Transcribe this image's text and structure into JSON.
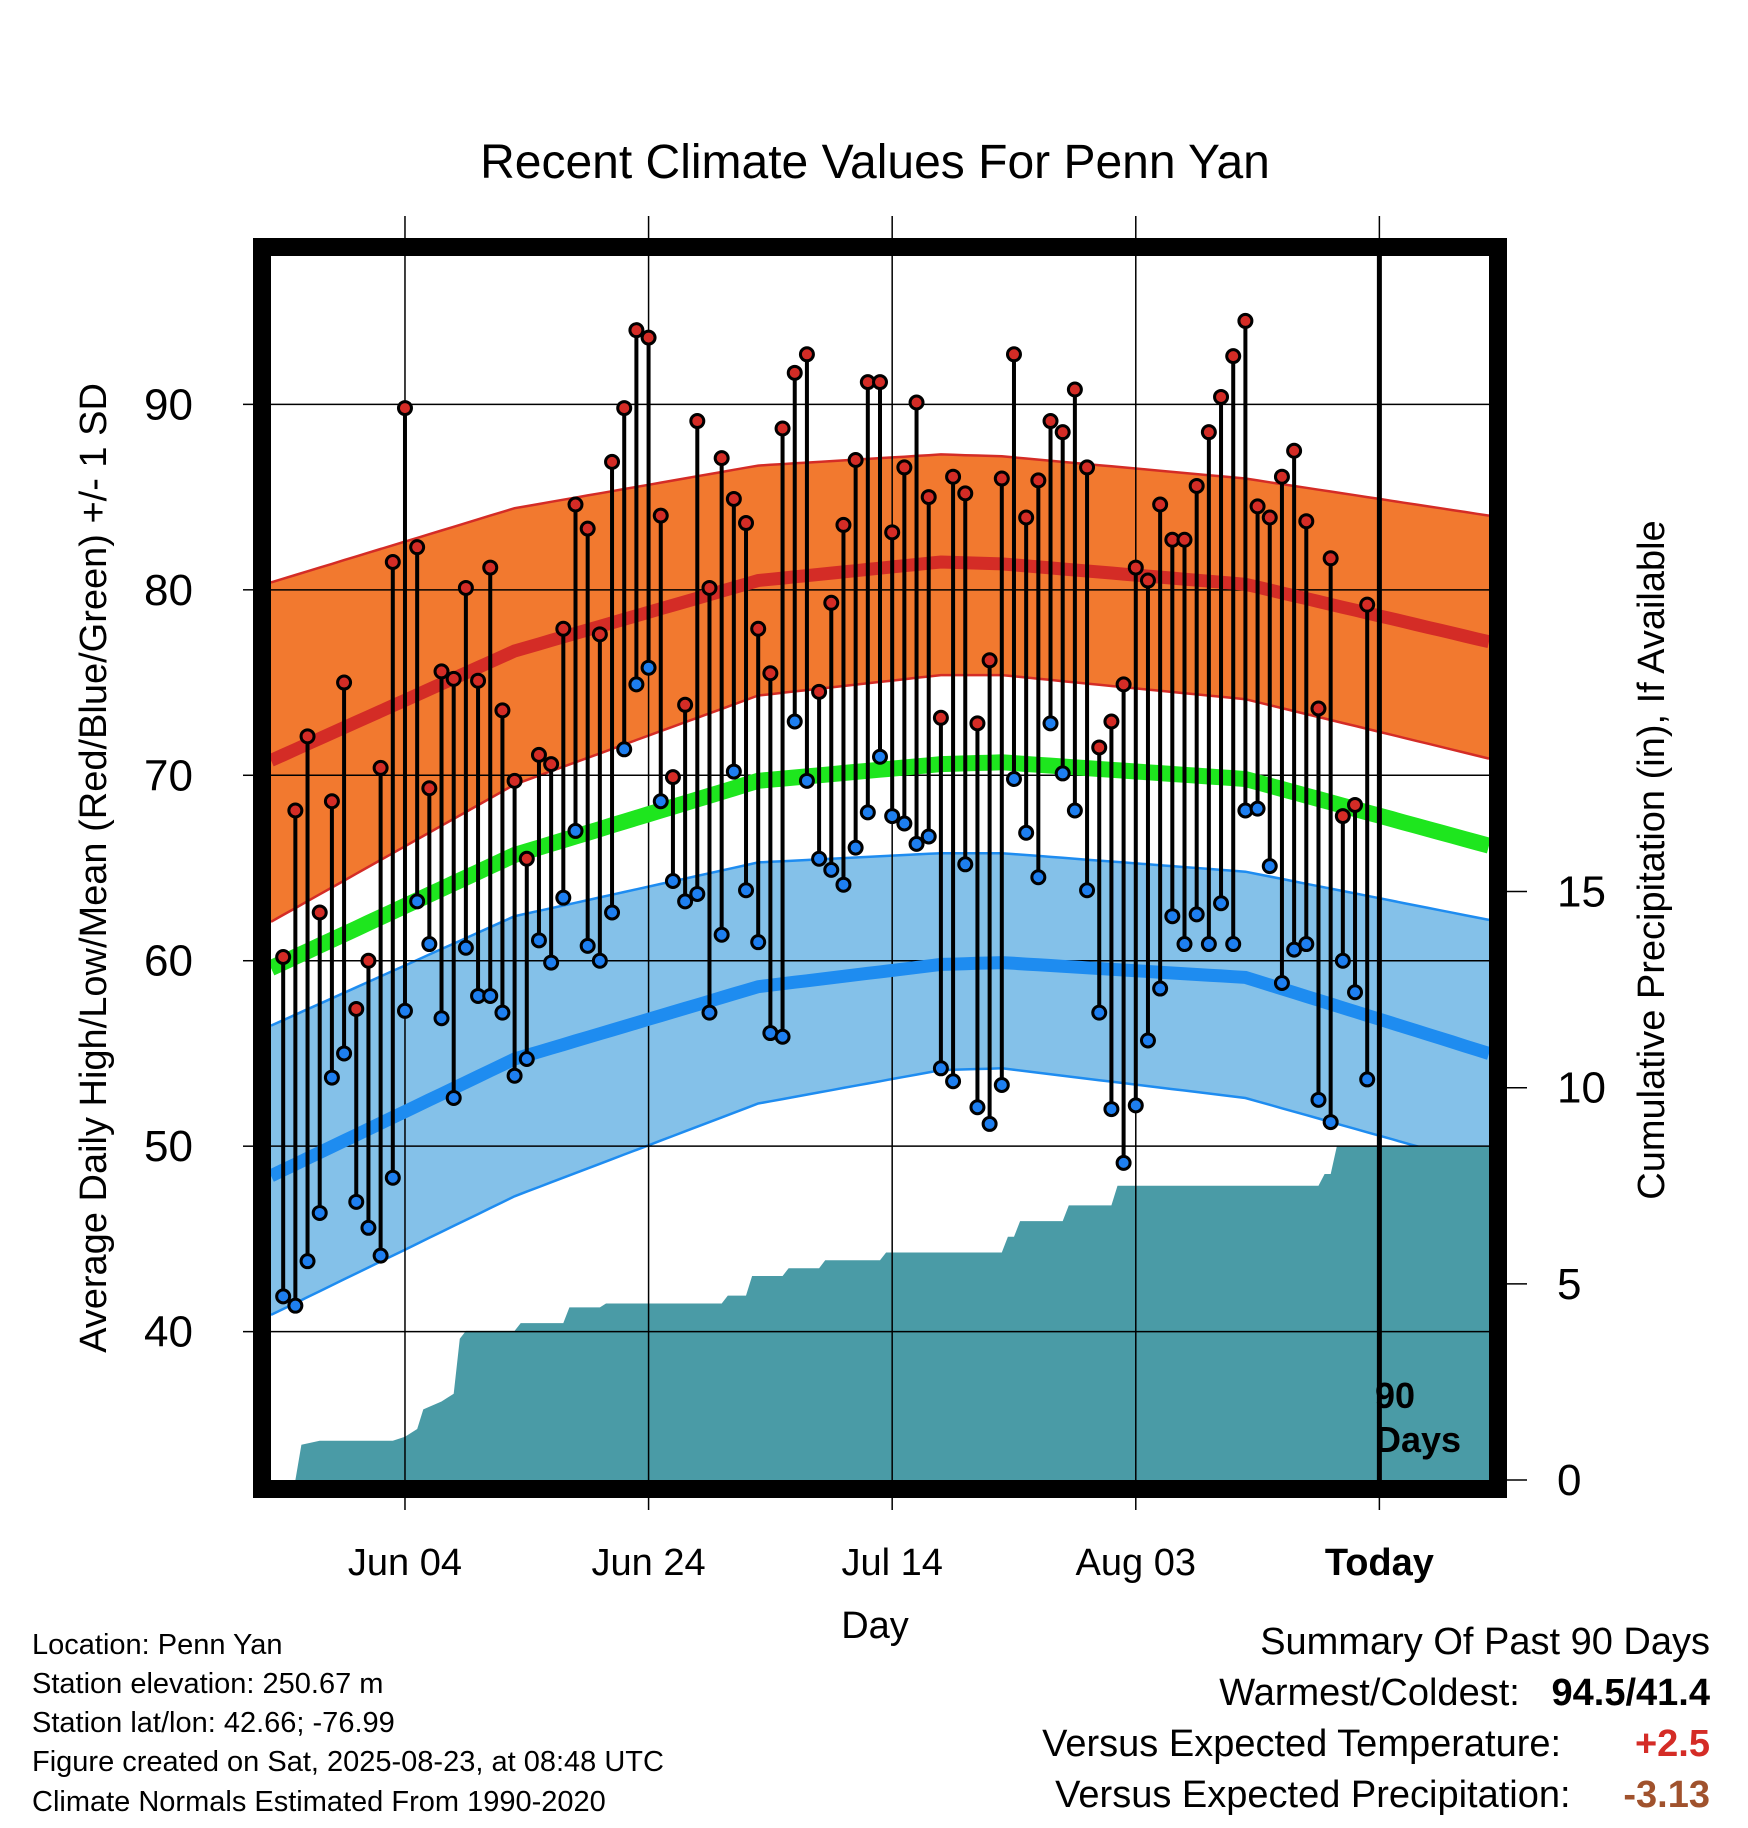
{
  "chart_data": {
    "type": "line",
    "title": "Recent Climate Values For Penn Yan",
    "xlabel": "Day",
    "ylabel": "Average Daily High/Low/Mean (Red/Blue/Green) +/- 1 SD",
    "y2label": "Cumulative Precipitation (in), If Available",
    "x_tick_labels": [
      "Jun 04",
      "Jun 24",
      "Jul 14",
      "Aug 03",
      "Today"
    ],
    "x_tick_days": [
      11,
      31,
      51,
      71,
      91
    ],
    "xlim": [
      0,
      100
    ],
    "y_ticks": [
      40,
      50,
      60,
      70,
      80,
      90
    ],
    "ylim": [
      32,
      98
    ],
    "y2_ticks": [
      0,
      5,
      10,
      15
    ],
    "y2_tick_labels": [
      "0",
      "5",
      "10",
      "15"
    ],
    "y2lim": [
      0,
      31.2
    ],
    "today_day": 91,
    "today_annotation": [
      "90",
      "Days"
    ],
    "colors": {
      "high_band": "#f2792f",
      "high_line": "#d42c26",
      "low_band": "#84c1e9",
      "low_line": "#1e8cf0",
      "mean_line": "#1ee61e",
      "precip_fill": "#4a9ba6",
      "high_marker": "#d42c26",
      "low_marker": "#1e7ff0"
    },
    "normal_high": {
      "days": [
        0,
        20,
        40,
        55,
        60,
        80,
        100
      ],
      "mean": [
        70.8,
        76.7,
        80.5,
        81.5,
        81.4,
        80.3,
        77.2
      ],
      "upper": [
        80.4,
        84.4,
        86.7,
        87.3,
        87.2,
        86.0,
        84.0
      ],
      "lower": [
        62.1,
        69.5,
        74.3,
        75.4,
        75.4,
        74.1,
        70.9
      ]
    },
    "normal_low": {
      "days": [
        0,
        20,
        40,
        55,
        60,
        80,
        100
      ],
      "mean": [
        48.4,
        54.7,
        58.6,
        59.8,
        59.9,
        59.1,
        55.0
      ],
      "upper": [
        56.5,
        62.4,
        65.3,
        65.8,
        65.8,
        64.8,
        62.2
      ],
      "lower": [
        40.9,
        47.3,
        52.3,
        54.1,
        54.2,
        52.6,
        48.9
      ]
    },
    "normal_mean": {
      "days": [
        0,
        20,
        40,
        55,
        60,
        80,
        100
      ],
      "mean": [
        59.6,
        65.7,
        69.7,
        70.6,
        70.7,
        69.8,
        66.2
      ]
    },
    "daily": {
      "days": [
        1,
        2,
        3,
        4,
        5,
        6,
        7,
        8,
        9,
        10,
        11,
        12,
        13,
        14,
        15,
        16,
        17,
        18,
        19,
        20,
        21,
        22,
        23,
        24,
        25,
        26,
        27,
        28,
        29,
        30,
        31,
        32,
        33,
        34,
        35,
        36,
        37,
        38,
        39,
        40,
        41,
        42,
        43,
        44,
        45,
        46,
        47,
        48,
        49,
        50,
        51,
        52,
        53,
        54,
        55,
        56,
        57,
        58,
        59,
        60,
        61,
        62,
        63,
        64,
        65,
        66,
        67,
        68,
        69,
        70,
        71,
        72,
        73,
        74,
        75,
        76,
        77,
        78,
        79,
        80,
        81,
        82,
        83,
        84,
        85,
        86,
        87,
        88,
        89,
        90
      ],
      "high": [
        60.2,
        68.1,
        72.1,
        62.6,
        68.6,
        75.0,
        57.4,
        60.0,
        70.4,
        81.5,
        89.8,
        82.3,
        69.3,
        75.6,
        75.2,
        80.1,
        75.1,
        81.2,
        73.5,
        69.7,
        65.5,
        71.1,
        70.6,
        77.9,
        84.6,
        83.3,
        77.6,
        86.9,
        89.8,
        94.0,
        93.6,
        84.0,
        69.9,
        73.8,
        89.1,
        80.1,
        87.1,
        84.9,
        83.6,
        77.9,
        75.5,
        88.7,
        91.7,
        92.7,
        74.5,
        79.3,
        83.5,
        87.0,
        91.2,
        91.2,
        83.1,
        86.6,
        90.1,
        85.0,
        73.1,
        86.1,
        85.2,
        72.8,
        76.2,
        86.0,
        92.7,
        83.9,
        85.9,
        89.1,
        88.5,
        90.8,
        86.6,
        71.5,
        72.9,
        74.9,
        81.2,
        80.5,
        84.6,
        82.7,
        82.7,
        85.6,
        88.5,
        90.4,
        92.6,
        94.5,
        84.5,
        83.9,
        86.1,
        87.5,
        83.7,
        73.6,
        81.7,
        67.8,
        68.4,
        79.2
      ],
      "low": [
        41.9,
        41.4,
        43.8,
        46.4,
        53.7,
        55.0,
        47.0,
        45.6,
        44.1,
        48.3,
        57.3,
        63.2,
        60.9,
        56.9,
        52.6,
        60.7,
        58.1,
        58.1,
        57.2,
        53.8,
        54.7,
        61.1,
        59.9,
        63.4,
        67.0,
        60.8,
        60.0,
        62.6,
        71.4,
        74.9,
        75.8,
        68.6,
        64.3,
        63.2,
        63.6,
        57.2,
        61.4,
        70.2,
        63.8,
        61.0,
        56.1,
        55.9,
        72.9,
        69.7,
        65.5,
        64.9,
        64.1,
        66.1,
        68.0,
        71.0,
        67.8,
        67.4,
        66.3,
        66.7,
        54.2,
        53.5,
        65.2,
        52.1,
        51.2,
        53.3,
        69.8,
        66.9,
        64.5,
        72.8,
        70.1,
        68.1,
        63.8,
        57.2,
        52.0,
        49.1,
        52.2,
        55.7,
        58.5,
        62.4,
        60.9,
        62.5,
        60.9,
        63.1,
        60.9,
        68.1,
        68.2,
        65.1,
        58.8,
        60.6,
        60.9,
        52.5,
        51.3,
        60.0,
        58.3,
        53.6
      ]
    },
    "precip": {
      "days": [
        0,
        2,
        2.5,
        4,
        10,
        11,
        12,
        12.5,
        14,
        15,
        15.5,
        16,
        16.5,
        20,
        20.5,
        24,
        24.5,
        27,
        27.5,
        37,
        37.5,
        39,
        39.5,
        42,
        42.5,
        45,
        45.5,
        50,
        50.5,
        60,
        60.5,
        61,
        61.5,
        65,
        65.5,
        69,
        69.5,
        86,
        86.5,
        87,
        87.5,
        100
      ],
      "values": [
        0,
        0,
        0.9,
        1.0,
        1.0,
        1.1,
        1.3,
        1.8,
        2.0,
        2.2,
        3.6,
        3.8,
        3.8,
        3.8,
        4.0,
        4.0,
        4.4,
        4.4,
        4.5,
        4.5,
        4.7,
        4.7,
        5.2,
        5.2,
        5.4,
        5.4,
        5.6,
        5.6,
        5.8,
        5.8,
        6.2,
        6.2,
        6.6,
        6.6,
        7.0,
        7.0,
        7.5,
        7.5,
        7.8,
        7.8,
        8.5,
        8.5
      ]
    }
  },
  "footer": {
    "location": "Location: Penn Yan",
    "elevation": "Station elevation: 250.67 m",
    "latlon": "Station lat/lon: 42.66; -76.99",
    "created": "Figure created on Sat, 2025-08-23, at 08:48 UTC",
    "normals": "Climate Normals Estimated From 1990-2020"
  },
  "summary": {
    "heading": "Summary Of Past 90 Days",
    "warm_cold_label": "Warmest/Coldest:",
    "warm_cold_value": "94.5/41.4",
    "temp_label": "Versus Expected Temperature:",
    "temp_value": "+2.5",
    "temp_color": "#d42c26",
    "precip_label": "Versus Expected Precipitation:",
    "precip_value": "-3.13",
    "precip_color": "#a0522d"
  }
}
